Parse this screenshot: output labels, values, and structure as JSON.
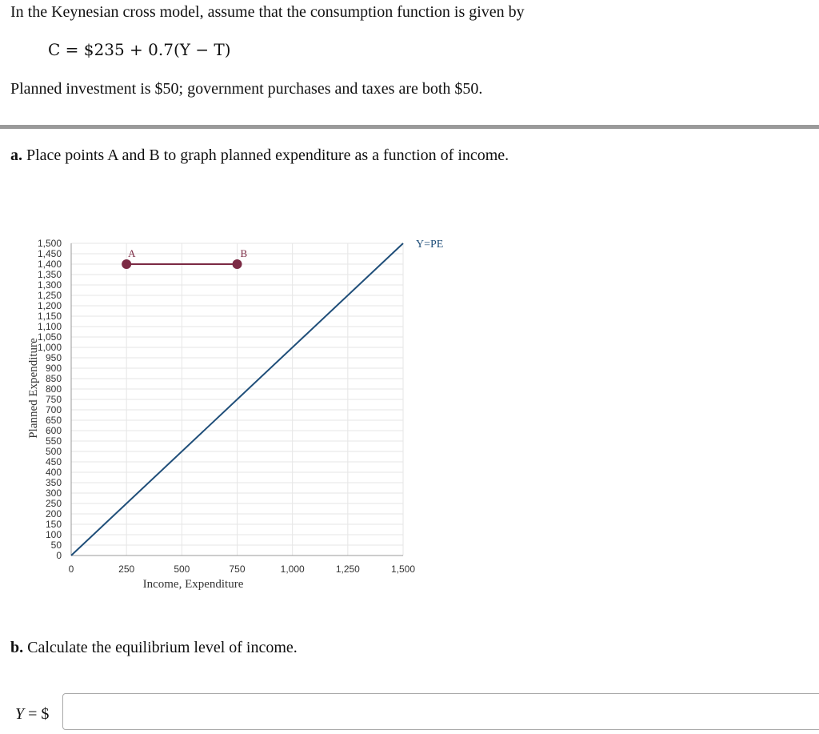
{
  "problem": {
    "intro": "In the Keynesian cross model, assume that the consumption function is given by",
    "equation": "C = $235 + 0.7(Y − T)",
    "details": "Planned investment is $50; government purchases and taxes are both $50."
  },
  "part_a": {
    "letter": "a.",
    "prompt": "Place points A and B to graph planned expenditure as a function of income."
  },
  "part_b": {
    "letter": "b.",
    "prompt": "Calculate the equilibrium level of income."
  },
  "answer": {
    "label_var": "Y",
    "label_rest": " = $",
    "value": ""
  },
  "colors": {
    "pe_points": "#7b2a44",
    "ype_line": "#1f4e79",
    "grid": "#e6e6e6"
  },
  "chart_data": {
    "type": "line",
    "xlabel": "Income, Expenditure",
    "ylabel": "Planned Expenditure",
    "xlim": [
      0,
      1500
    ],
    "ylim": [
      0,
      1500
    ],
    "x_ticks": [
      0,
      250,
      500,
      750,
      1000,
      1250,
      1500
    ],
    "x_tick_labels": [
      "0",
      "250",
      "500",
      "750",
      "1,000",
      "1,250",
      "1,500"
    ],
    "y_ticks": [
      0,
      50,
      100,
      150,
      200,
      250,
      300,
      350,
      400,
      450,
      500,
      550,
      600,
      650,
      700,
      750,
      800,
      850,
      900,
      950,
      1000,
      1050,
      1100,
      1150,
      1200,
      1250,
      1300,
      1350,
      1400,
      1450,
      1500
    ],
    "y_tick_labels": [
      "0",
      "50",
      "100",
      "150",
      "200",
      "250",
      "300",
      "350",
      "400",
      "450",
      "500",
      "550",
      "600",
      "650",
      "700",
      "750",
      "800",
      "850",
      "900",
      "950",
      "1,000",
      "1,050",
      "1,100",
      "1,150",
      "1,200",
      "1,250",
      "1,300",
      "1,350",
      "1,400",
      "1,450",
      "1,500"
    ],
    "grid": true,
    "series": [
      {
        "name": "Y=PE",
        "x": [
          0,
          1500
        ],
        "y": [
          0,
          1500
        ]
      },
      {
        "name": "",
        "points": [
          {
            "label": "A",
            "x": 250,
            "y": 1400
          },
          {
            "label": "B",
            "x": 750,
            "y": 1400
          }
        ]
      }
    ]
  }
}
